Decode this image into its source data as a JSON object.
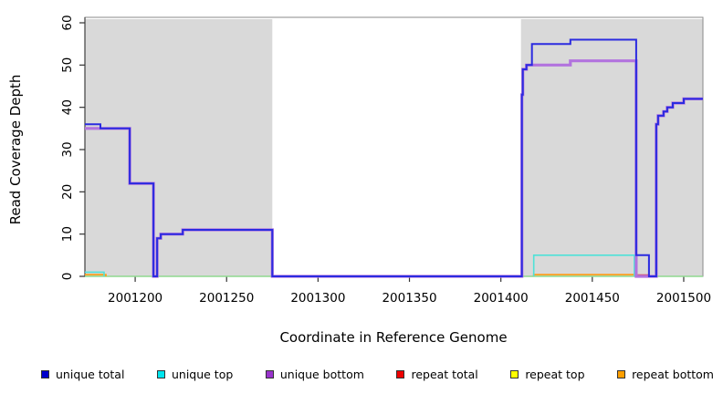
{
  "chart_data": {
    "type": "line",
    "subtype": "step-after",
    "title": "",
    "xlabel": "Coordinate in Reference Genome",
    "ylabel": "Read Coverage Depth",
    "xlim": [
      2001172.5,
      2001510.5
    ],
    "ylim": [
      0,
      60
    ],
    "x_ticks": [
      2001200,
      2001250,
      2001300,
      2001350,
      2001400,
      2001450,
      2001500
    ],
    "y_ticks": [
      0,
      10,
      20,
      30,
      40,
      50,
      60
    ],
    "grid": false,
    "legend_position": "bottom",
    "background_color": "#ffffff",
    "shaded_regions": [
      {
        "from": 2001172.5,
        "to": 2001275,
        "color": "#d9d9d9"
      },
      {
        "from": 2001411,
        "to": 2001510.5,
        "color": "#d9d9d9"
      }
    ],
    "box_color": "#8a8a8a",
    "left_axis_color": "#3f3f3f",
    "tick_color": "#333333",
    "draw_order": [
      "baseline",
      "repeat total",
      "repeat bottom",
      "unique top",
      "unique bottom",
      "unique total"
    ],
    "series": [
      {
        "name": "unique total",
        "color": "#2b2be0",
        "width": 2,
        "segments": [
          [
            [
              2001172.5,
              36
            ],
            [
              2001181,
              35
            ],
            [
              2001197,
              22
            ],
            [
              2001210,
              0
            ],
            [
              2001212,
              9
            ],
            [
              2001214,
              10
            ],
            [
              2001226,
              11
            ],
            [
              2001275,
              0
            ],
            [
              2001411.5,
              43
            ],
            [
              2001412,
              49
            ],
            [
              2001414,
              50
            ],
            [
              2001417,
              55
            ],
            [
              2001438,
              56
            ],
            [
              2001474,
              5
            ],
            [
              2001481,
              0
            ],
            [
              2001485,
              36
            ],
            [
              2001486,
              38
            ],
            [
              2001489,
              39
            ],
            [
              2001491,
              40
            ],
            [
              2001494,
              41
            ],
            [
              2001500,
              42
            ],
            [
              2001510.5,
              42
            ]
          ]
        ]
      },
      {
        "name": "unique top",
        "color": "#4fe2d8",
        "width": 1.6,
        "segments": [
          [
            [
              2001172.5,
              1
            ],
            [
              2001183,
              0
            ]
          ],
          [
            [
              2001418,
              0
            ],
            [
              2001418,
              5
            ],
            [
              2001473,
              0
            ]
          ]
        ]
      },
      {
        "name": "unique bottom",
        "color": "#b273de",
        "width": 3.2,
        "segments": [
          [
            [
              2001172.5,
              35
            ],
            [
              2001197,
              22
            ],
            [
              2001210,
              0
            ],
            [
              2001212,
              9
            ],
            [
              2001214,
              10
            ],
            [
              2001226,
              11
            ],
            [
              2001275,
              0
            ],
            [
              2001411.5,
              43
            ],
            [
              2001412,
              49
            ],
            [
              2001414,
              50
            ],
            [
              2001438,
              51
            ],
            [
              2001474,
              0
            ],
            [
              2001485,
              36
            ],
            [
              2001486,
              38
            ],
            [
              2001489,
              39
            ],
            [
              2001491,
              40
            ],
            [
              2001494,
              41
            ],
            [
              2001500,
              42
            ],
            [
              2001510.5,
              42
            ]
          ]
        ]
      },
      {
        "name": "repeat total",
        "color": "#e03c3c",
        "width": 1.6,
        "segments": [
          [
            [
              2001474,
              0
            ],
            [
              2001474,
              0.3
            ],
            [
              2001481,
              0
            ]
          ]
        ]
      },
      {
        "name": "repeat top",
        "color": "#ffff00",
        "width": 1.6,
        "segments": []
      },
      {
        "name": "repeat bottom",
        "color": "#ff9f1f",
        "width": 1.8,
        "segments": [
          [
            [
              2001172.5,
              0.4
            ],
            [
              2001184,
              0
            ]
          ],
          [
            [
              2001418,
              0
            ],
            [
              2001418,
              0.4
            ],
            [
              2001474,
              0
            ]
          ]
        ]
      },
      {
        "name": "baseline",
        "color": "#8fd98f",
        "width": 1.6,
        "segments": [
          [
            [
              2001172.5,
              0
            ],
            [
              2001510.5,
              0
            ]
          ]
        ]
      }
    ]
  },
  "legend": {
    "items": [
      {
        "label": "unique total",
        "color": "#0000cc"
      },
      {
        "label": "unique top",
        "color": "#00e5ee"
      },
      {
        "label": "unique bottom",
        "color": "#9933cc"
      },
      {
        "label": "repeat total",
        "color": "#ee0000"
      },
      {
        "label": "repeat top",
        "color": "#ffff00"
      },
      {
        "label": "repeat bottom",
        "color": "#ff9f00"
      }
    ]
  }
}
